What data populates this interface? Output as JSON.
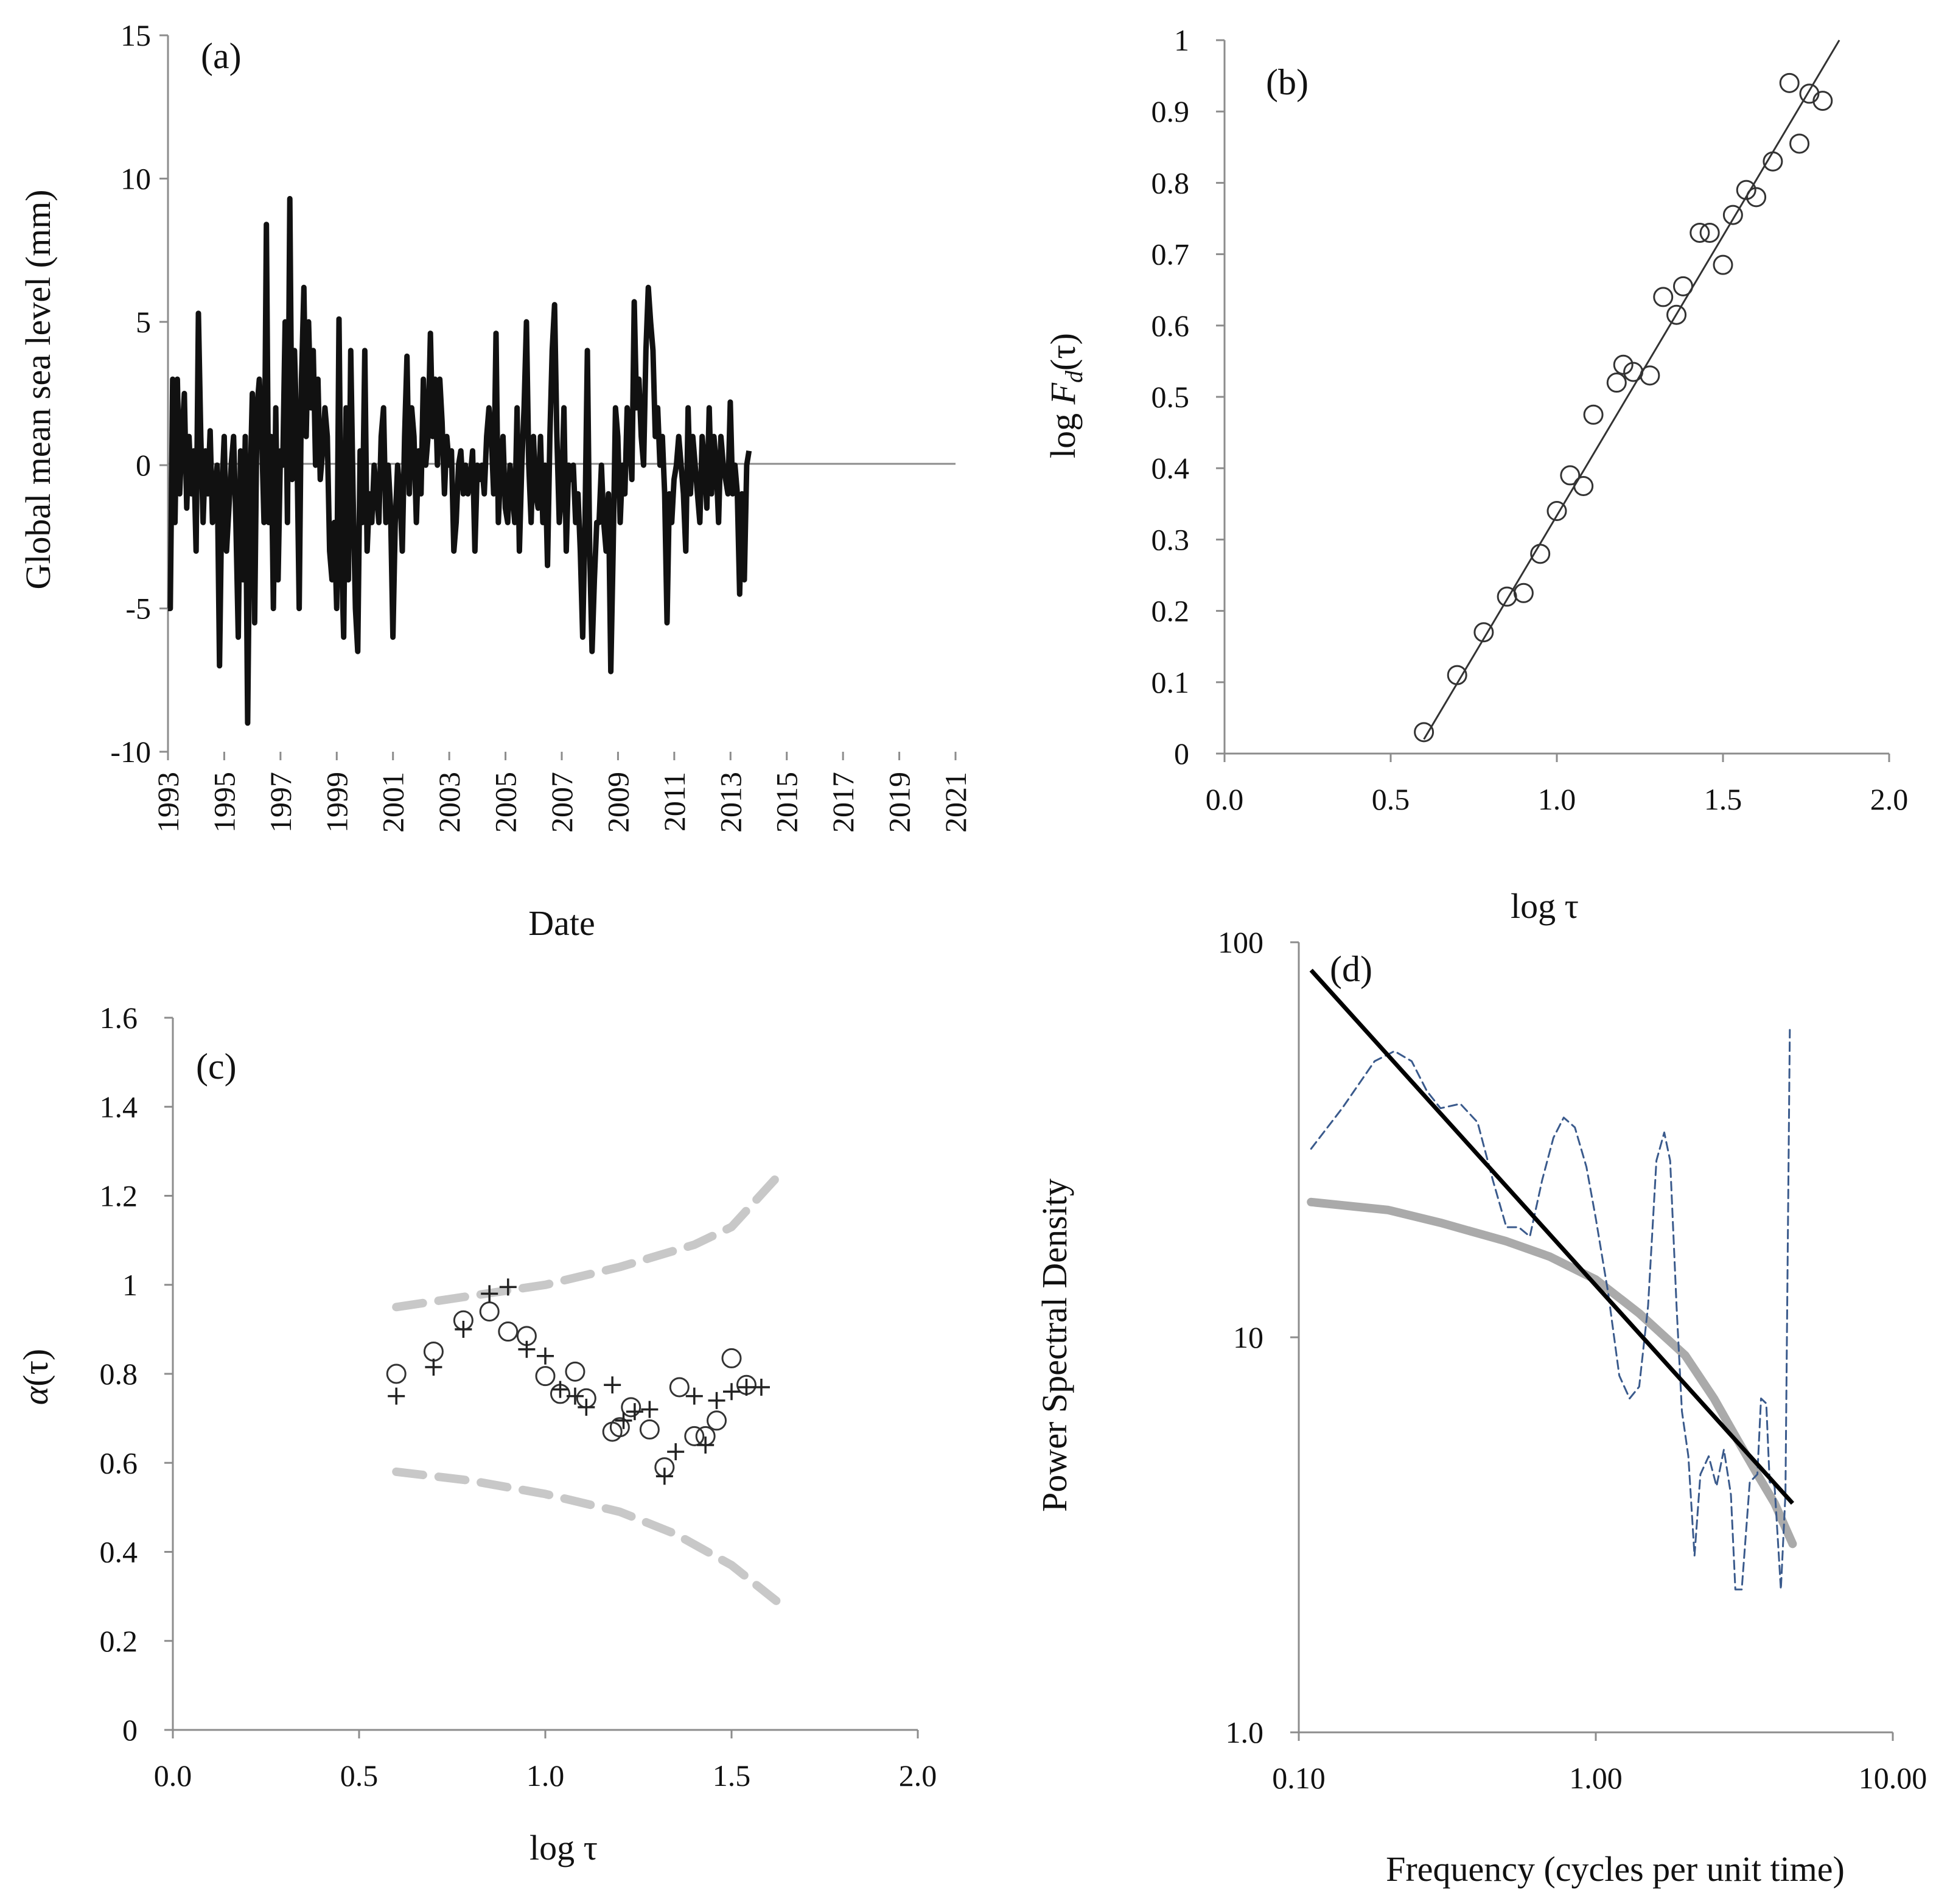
{
  "chart_data": [
    {
      "id": "a",
      "panel_label": "(a)",
      "type": "line",
      "xlabel": "Date",
      "ylabel": "Global mean sea level  (mm)",
      "ylim": [
        -10,
        15
      ],
      "yticks": [
        "-10",
        "-5",
        "0",
        "5",
        "10",
        "15"
      ],
      "xticks": [
        "1993",
        "1995",
        "1997",
        "1999",
        "2001",
        "2003",
        "2005",
        "2007",
        "2009",
        "2011",
        "2013",
        "2015",
        "2017",
        "2019",
        "2021"
      ],
      "xlim": [
        1993,
        2021
      ],
      "color": "#111111",
      "x_start": 1993.0,
      "x_step": 0.0833,
      "values": [
        -5.0,
        -5.0,
        3.0,
        -2.0,
        3.0,
        -1.0,
        1.0,
        2.5,
        -1.5,
        1.0,
        -1.0,
        0.5,
        -3.0,
        5.3,
        1.0,
        -2.0,
        0.5,
        -1.0,
        1.2,
        -2.0,
        -1.0,
        0.0,
        -7.0,
        -1.0,
        1.0,
        -3.0,
        -1.5,
        0.0,
        1.0,
        -2.0,
        -6.0,
        0.5,
        -4.0,
        1.0,
        -9.0,
        -1.0,
        2.5,
        -5.5,
        2.0,
        3.0,
        1.0,
        -2.0,
        8.4,
        -2.0,
        1.0,
        -5.0,
        2.0,
        -4.0,
        0.5,
        0.0,
        5.0,
        -2.0,
        9.3,
        -0.5,
        4.0,
        1.0,
        -5.0,
        3.0,
        6.2,
        1.0,
        5.0,
        2.0,
        4.0,
        0.0,
        3.0,
        -0.5,
        0.5,
        2.0,
        1.0,
        -3.0,
        -4.0,
        -2.0,
        -5.0,
        5.1,
        -3.0,
        -6.0,
        2.0,
        -4.0,
        4.0,
        -1.0,
        -5.0,
        -6.5,
        0.5,
        -2.0,
        4.0,
        -3.0,
        -1.0,
        -2.0,
        0.0,
        -1.0,
        -2.0,
        1.0,
        2.0,
        -2.0,
        0.0,
        -1.5,
        -6.0,
        -2.0,
        0.0,
        -1.0,
        -3.0,
        1.0,
        3.8,
        -1.0,
        2.0,
        1.0,
        -2.0,
        0.5,
        -1.0,
        3.0,
        0.0,
        1.0,
        4.6,
        1.0,
        3.0,
        0.0,
        3.0,
        1.5,
        -1.0,
        1.0,
        0.0,
        0.5,
        -3.0,
        -2.0,
        0.0,
        0.5,
        -1.0,
        0.0,
        -1.0,
        -0.5,
        0.5,
        -3.0,
        0.0,
        -0.5,
        0.0,
        -1.0,
        1.0,
        2.0,
        1.0,
        -1.0,
        4.6,
        -2.0,
        0.0,
        1.0,
        -1.5,
        -2.0,
        0.0,
        -1.0,
        -2.0,
        2.0,
        -3.0,
        0.0,
        2.0,
        5.0,
        0.0,
        -2.0,
        1.0,
        -1.0,
        -1.5,
        1.0,
        -2.0,
        0.0,
        -3.5,
        1.0,
        4.0,
        5.6,
        1.0,
        -2.0,
        -1.0,
        2.0,
        -3.0,
        0.0,
        -0.5,
        0.0,
        -2.0,
        -1.0,
        -3.0,
        -6.0,
        -2.0,
        4.0,
        -3.0,
        -6.5,
        -4.0,
        -2.0,
        -2.0,
        0.0,
        -2.0,
        -3.0,
        -1.0,
        -7.2,
        -3.0,
        2.0,
        1.0,
        -2.0,
        0.0,
        -1.0,
        2.0,
        1.0,
        -0.5,
        5.7,
        2.0,
        3.0,
        1.0,
        0.0,
        4.0,
        6.2,
        5.0,
        4.0,
        1.0,
        2.0,
        0.0,
        1.0,
        -1.0,
        -5.5,
        -1.0,
        -2.0,
        -0.5,
        0.0,
        1.0,
        0.0,
        -1.0,
        -3.0,
        2.0,
        -1.0,
        1.0,
        0.0,
        -1.0,
        -2.0,
        1.0,
        0.0,
        -1.5,
        2.0,
        -1.0,
        1.0,
        0.0,
        -2.0,
        1.0,
        0.0,
        -0.5,
        -1.0,
        2.2,
        -1.0,
        0.0,
        -1.0,
        -4.5,
        -1.0,
        -4.0,
        0.0,
        0.5
      ]
    },
    {
      "id": "b",
      "panel_label": "(b)",
      "type": "scatter",
      "xlabel": "log τ",
      "ylabel_prefix": "log ",
      "ylabel_var": "F",
      "ylabel_sub": "d",
      "ylabel_suffix": "(τ)",
      "xlim": [
        0.0,
        2.0
      ],
      "ylim": [
        0.0,
        1.0
      ],
      "xticks": [
        "0.0",
        "0.5",
        "1.0",
        "1.5",
        "2.0"
      ],
      "yticks": [
        "0",
        "0.1",
        "0.2",
        "0.3",
        "0.4",
        "0.5",
        "0.6",
        "0.7",
        "0.8",
        "0.9",
        "1"
      ],
      "points": [
        [
          0.6,
          0.03
        ],
        [
          0.7,
          0.11
        ],
        [
          0.78,
          0.17
        ],
        [
          0.85,
          0.22
        ],
        [
          0.9,
          0.225
        ],
        [
          0.95,
          0.28
        ],
        [
          1.0,
          0.34
        ],
        [
          1.04,
          0.39
        ],
        [
          1.08,
          0.375
        ],
        [
          1.11,
          0.475
        ],
        [
          1.18,
          0.52
        ],
        [
          1.2,
          0.545
        ],
        [
          1.23,
          0.535
        ],
        [
          1.28,
          0.53
        ],
        [
          1.32,
          0.64
        ],
        [
          1.36,
          0.615
        ],
        [
          1.38,
          0.655
        ],
        [
          1.43,
          0.73
        ],
        [
          1.46,
          0.73
        ],
        [
          1.5,
          0.685
        ],
        [
          1.53,
          0.755
        ],
        [
          1.57,
          0.79
        ],
        [
          1.6,
          0.78
        ],
        [
          1.65,
          0.83
        ],
        [
          1.7,
          0.94
        ],
        [
          1.73,
          0.855
        ],
        [
          1.76,
          0.925
        ],
        [
          1.8,
          0.915
        ]
      ],
      "fit_line": [
        [
          0.6,
          0.02
        ],
        [
          1.85,
          1.0
        ]
      ]
    },
    {
      "id": "c",
      "panel_label": "(c)",
      "type": "scatter",
      "xlabel": "log τ",
      "ylabel_var": "α",
      "ylabel_suffix": "(τ)",
      "xlim": [
        0.0,
        2.0
      ],
      "ylim": [
        0.0,
        1.6
      ],
      "xticks": [
        "0.0",
        "0.5",
        "1.0",
        "1.5",
        "2.0"
      ],
      "yticks": [
        "0",
        "0.2",
        "0.4",
        "0.6",
        "0.8",
        "1",
        "1.2",
        "1.4",
        "1.6"
      ],
      "series": [
        {
          "name": "circles",
          "marker": "o",
          "points": [
            [
              0.6,
              0.8
            ],
            [
              0.7,
              0.85
            ],
            [
              0.78,
              0.92
            ],
            [
              0.85,
              0.94
            ],
            [
              0.9,
              0.895
            ],
            [
              0.95,
              0.885
            ],
            [
              1.0,
              0.795
            ],
            [
              1.04,
              0.755
            ],
            [
              1.08,
              0.805
            ],
            [
              1.11,
              0.745
            ],
            [
              1.18,
              0.67
            ],
            [
              1.2,
              0.68
            ],
            [
              1.23,
              0.725
            ],
            [
              1.28,
              0.675
            ],
            [
              1.32,
              0.59
            ],
            [
              1.36,
              0.77
            ],
            [
              1.4,
              0.66
            ],
            [
              1.43,
              0.66
            ],
            [
              1.46,
              0.695
            ],
            [
              1.5,
              0.835
            ],
            [
              1.54,
              0.775
            ]
          ]
        },
        {
          "name": "crosses",
          "marker": "+",
          "points": [
            [
              0.6,
              0.75
            ],
            [
              0.7,
              0.815
            ],
            [
              0.78,
              0.9
            ],
            [
              0.85,
              0.98
            ],
            [
              0.9,
              0.995
            ],
            [
              0.95,
              0.855
            ],
            [
              1.0,
              0.84
            ],
            [
              1.04,
              0.765
            ],
            [
              1.08,
              0.75
            ],
            [
              1.11,
              0.725
            ],
            [
              1.18,
              0.775
            ],
            [
              1.21,
              0.695
            ],
            [
              1.24,
              0.715
            ],
            [
              1.28,
              0.72
            ],
            [
              1.32,
              0.57
            ],
            [
              1.35,
              0.625
            ],
            [
              1.4,
              0.75
            ],
            [
              1.43,
              0.64
            ],
            [
              1.46,
              0.74
            ],
            [
              1.5,
              0.76
            ],
            [
              1.54,
              0.77
            ],
            [
              1.58,
              0.77
            ]
          ]
        },
        {
          "name": "upper_band",
          "style": "dashed",
          "color": "#c8c8c8",
          "points": [
            [
              0.6,
              0.95
            ],
            [
              0.8,
              0.975
            ],
            [
              1.0,
              1.0
            ],
            [
              1.2,
              1.04
            ],
            [
              1.4,
              1.09
            ],
            [
              1.5,
              1.13
            ],
            [
              1.62,
              1.24
            ]
          ]
        },
        {
          "name": "lower_band",
          "style": "dashed",
          "color": "#c8c8c8",
          "points": [
            [
              0.6,
              0.58
            ],
            [
              0.8,
              0.56
            ],
            [
              1.0,
              0.53
            ],
            [
              1.2,
              0.49
            ],
            [
              1.35,
              0.44
            ],
            [
              1.5,
              0.37
            ],
            [
              1.62,
              0.29
            ]
          ]
        }
      ]
    },
    {
      "id": "d",
      "panel_label": "(d)",
      "type": "line",
      "xscale": "log",
      "yscale": "log",
      "xlabel": "Frequency (cycles per unit time)",
      "ylabel": "Power Spectral Density",
      "xlim": [
        0.1,
        10.0
      ],
      "ylim": [
        1.0,
        100.0
      ],
      "xticks": [
        {
          "v": 0.1,
          "label": "0.10"
        },
        {
          "v": 1.0,
          "label": "1.00"
        },
        {
          "v": 10.0,
          "label": "10.00"
        }
      ],
      "yticks": [
        {
          "v": 1.0,
          "label": "1.0"
        },
        {
          "v": 10.0,
          "label": "10"
        },
        {
          "v": 100.0,
          "label": "100"
        }
      ],
      "series": [
        {
          "name": "spectrum",
          "style": "dashed",
          "color": "#3a5a8c",
          "points": [
            [
              0.11,
              30
            ],
            [
              0.14,
              38
            ],
            [
              0.18,
              50
            ],
            [
              0.21,
              53
            ],
            [
              0.24,
              50
            ],
            [
              0.27,
              42
            ],
            [
              0.3,
              38
            ],
            [
              0.35,
              39
            ],
            [
              0.4,
              35
            ],
            [
              0.45,
              25
            ],
            [
              0.5,
              19
            ],
            [
              0.55,
              19
            ],
            [
              0.6,
              18
            ],
            [
              0.66,
              25
            ],
            [
              0.72,
              32
            ],
            [
              0.78,
              36
            ],
            [
              0.85,
              34
            ],
            [
              0.93,
              27
            ],
            [
              1.0,
              20
            ],
            [
              1.1,
              13
            ],
            [
              1.2,
              8
            ],
            [
              1.3,
              7
            ],
            [
              1.4,
              7.5
            ],
            [
              1.5,
              12
            ],
            [
              1.6,
              28
            ],
            [
              1.7,
              33
            ],
            [
              1.78,
              28
            ],
            [
              1.87,
              12
            ],
            [
              1.95,
              6.5
            ],
            [
              2.05,
              5
            ],
            [
              2.15,
              2.8
            ],
            [
              2.25,
              4.5
            ],
            [
              2.4,
              5
            ],
            [
              2.55,
              4.2
            ],
            [
              2.7,
              5.2
            ],
            [
              2.85,
              4
            ],
            [
              2.95,
              2.3
            ],
            [
              3.1,
              2.3
            ],
            [
              3.3,
              4.3
            ],
            [
              3.5,
              4.5
            ],
            [
              3.6,
              7
            ],
            [
              3.75,
              6.8
            ],
            [
              3.85,
              4.3
            ],
            [
              4.0,
              4.2
            ],
            [
              4.2,
              2.3
            ],
            [
              4.35,
              4
            ],
            [
              4.5,
              60
            ]
          ]
        },
        {
          "name": "fitted_smooth",
          "style": "solid",
          "color": "#aaaaaa",
          "points": [
            [
              0.11,
              22
            ],
            [
              0.2,
              21
            ],
            [
              0.3,
              19.5
            ],
            [
              0.5,
              17.5
            ],
            [
              0.7,
              16
            ],
            [
              1.0,
              14
            ],
            [
              1.4,
              11.5
            ],
            [
              2.0,
              9
            ],
            [
              2.5,
              7
            ],
            [
              3.0,
              5.5
            ],
            [
              3.5,
              4.5
            ],
            [
              4.0,
              3.8
            ],
            [
              4.6,
              3.0
            ]
          ]
        },
        {
          "name": "power_law",
          "style": "solid",
          "color": "#000000",
          "points": [
            [
              0.11,
              85
            ],
            [
              4.6,
              3.8
            ]
          ]
        }
      ]
    }
  ]
}
